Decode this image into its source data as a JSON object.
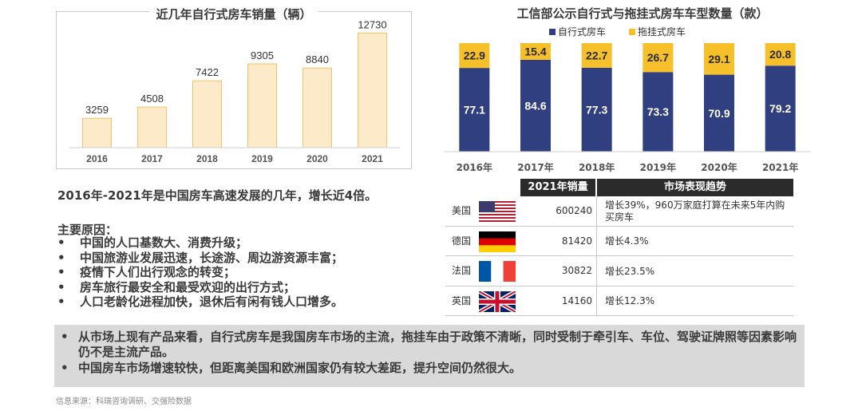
{
  "chart_data": [
    {
      "type": "bar",
      "title": "近几年自行式房车销量（辆）",
      "categories": [
        "2016",
        "2017",
        "2018",
        "2019",
        "2020",
        "2021"
      ],
      "values": [
        3259,
        4508,
        7422,
        9305,
        8840,
        12730
      ],
      "ylim": [
        0,
        14000
      ],
      "bar_color": "#fdeac8",
      "bar_border": "#f2c16a",
      "grid": false
    },
    {
      "type": "bar",
      "stacked": true,
      "title": "工信部公示自行式与拖挂式房车车型数量（款）",
      "categories": [
        "2016年",
        "2017年",
        "2018年",
        "2019年",
        "2020年",
        "2021年"
      ],
      "series": [
        {
          "name": "自行式房车",
          "values": [
            77.1,
            84.6,
            77.3,
            73.3,
            70.9,
            79.2
          ],
          "color": "#2f3f7f"
        },
        {
          "name": "拖挂式房车",
          "values": [
            22.9,
            15.4,
            22.7,
            26.7,
            29.1,
            20.8
          ],
          "color": "#f5c02a"
        }
      ],
      "ylim": [
        0,
        100
      ],
      "legend": "top"
    }
  ],
  "table": {
    "header_sales": "2021年销量",
    "header_trend": "市场表现趋势",
    "rows": [
      {
        "country": "美国",
        "flag": "us-flag-icon",
        "sales": "600240",
        "trend": "增长39%，960万家庭打算在未来5年内购买房车"
      },
      {
        "country": "德国",
        "flag": "germany-flag-icon",
        "sales": "81420",
        "trend": "增长4.3%"
      },
      {
        "country": "法国",
        "flag": "france-flag-icon",
        "sales": "30822",
        "trend": "增长23.5%"
      },
      {
        "country": "英国",
        "flag": "uk-flag-icon",
        "sales": "14160",
        "trend": "增长12.3%"
      }
    ]
  },
  "summary": "2016年-2021年是中国房车高速发展的几年，增长近4倍。",
  "reasons_title": "主要原因：",
  "reasons": [
    "中国的人口基数大、消费升级；",
    "中国旅游业发展迅速，长途游、周边游资源丰富；",
    "疫情下人们出行观念的转变；",
    "房车旅行最安全和最受欢迎的出行方式；",
    "人口老龄化进程加快，退休后有闲有钱人口增多。"
  ],
  "conclusions": [
    "从市场上现有产品来看，自行式房车是我国房车市场的主流，拖挂车由于政策不清晰，同时受制于牵引车、车位、驾驶证牌照等因素影响仍不是主流产品。",
    "中国房车市场增速较快，但距离美国和欧洲国家仍有较大差距，提升空间仍然很大。"
  ],
  "source": "信息来源：科瑞咨询调研、交强险数据"
}
